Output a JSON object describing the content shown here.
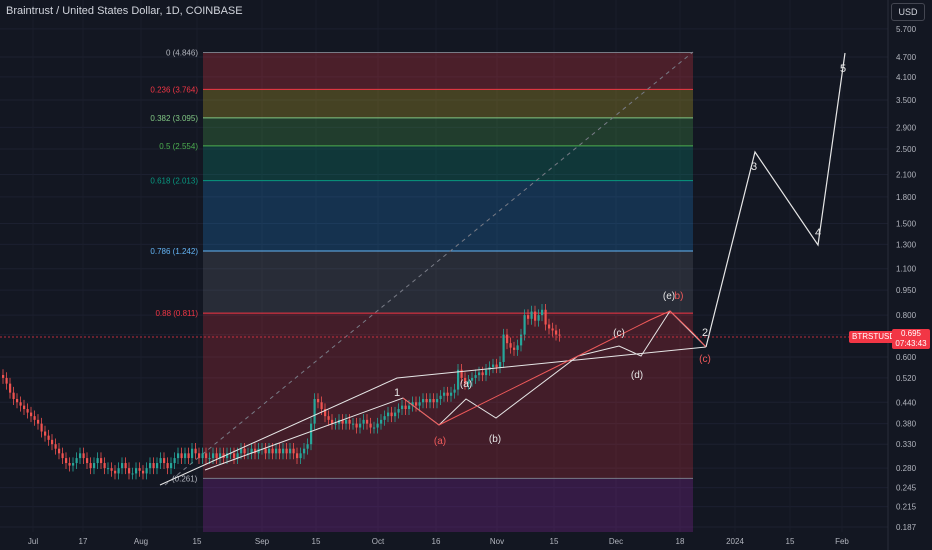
{
  "header": {
    "title": "Braintrust / United States Dollar, 1D, COINBASE",
    "currency": "USD"
  },
  "symbol_tag": "BTRSTUSD",
  "last_price": {
    "price": "0.695",
    "countdown": "07:43:43"
  },
  "colors": {
    "background": "#131722",
    "up": "#26a69a",
    "down": "#ef5350",
    "wave_line": "#e6e6e6",
    "wave_red": "#f05a5a"
  },
  "chart_data": {
    "type": "candlestick",
    "title": "Braintrust / United States Dollar, 1D, COINBASE",
    "y_scale": "log",
    "y_ticks": [
      "5.700",
      "4.700",
      "4.100",
      "3.500",
      "2.900",
      "2.500",
      "2.100",
      "1.800",
      "1.500",
      "1.300",
      "1.100",
      "0.950",
      "0.800",
      "0.700",
      "0.600",
      "0.520",
      "0.440",
      "0.380",
      "0.330",
      "0.280",
      "0.245",
      "0.215",
      "0.187"
    ],
    "x_ticks": [
      "Jul",
      "17",
      "Aug",
      "15",
      "Sep",
      "15",
      "Oct",
      "16",
      "Nov",
      "15",
      "Dec",
      "18",
      "2024",
      "15",
      "Feb"
    ],
    "fib_levels": [
      {
        "ratio": "0",
        "price": "4.846"
      },
      {
        "ratio": "0.236",
        "price": "3.764"
      },
      {
        "ratio": "0.382",
        "price": "3.095"
      },
      {
        "ratio": "0.5",
        "price": "2.554"
      },
      {
        "ratio": "0.618",
        "price": "2.013"
      },
      {
        "ratio": "0.786",
        "price": "1.242"
      },
      {
        "ratio": "0.88",
        "price": "0.811"
      },
      {
        "ratio": "1",
        "price": "0.261"
      }
    ],
    "fib_labels": [
      "0 (4.846)",
      "0.236 (3.764)",
      "0.382 (3.095)",
      "0.5 (2.554)",
      "0.618 (2.013)",
      "0.786 (1.242)",
      "0.88 (0.811)",
      "(0.261)"
    ],
    "candle_closes": [
      0.52,
      0.5,
      0.47,
      0.45,
      0.44,
      0.43,
      0.42,
      0.41,
      0.4,
      0.39,
      0.38,
      0.36,
      0.35,
      0.34,
      0.33,
      0.32,
      0.31,
      0.3,
      0.29,
      0.285,
      0.29,
      0.3,
      0.31,
      0.3,
      0.29,
      0.28,
      0.29,
      0.3,
      0.29,
      0.28,
      0.28,
      0.275,
      0.27,
      0.28,
      0.29,
      0.28,
      0.27,
      0.27,
      0.28,
      0.275,
      0.27,
      0.28,
      0.29,
      0.28,
      0.29,
      0.3,
      0.29,
      0.28,
      0.29,
      0.3,
      0.31,
      0.3,
      0.31,
      0.3,
      0.32,
      0.31,
      0.3,
      0.31,
      0.3,
      0.3,
      0.31,
      0.3,
      0.31,
      0.3,
      0.31,
      0.31,
      0.3,
      0.31,
      0.32,
      0.31,
      0.31,
      0.32,
      0.31,
      0.32,
      0.32,
      0.31,
      0.32,
      0.31,
      0.32,
      0.31,
      0.32,
      0.31,
      0.32,
      0.31,
      0.3,
      0.31,
      0.32,
      0.33,
      0.38,
      0.45,
      0.44,
      0.42,
      0.4,
      0.39,
      0.38,
      0.38,
      0.39,
      0.38,
      0.39,
      0.38,
      0.38,
      0.37,
      0.38,
      0.39,
      0.38,
      0.37,
      0.37,
      0.38,
      0.39,
      0.4,
      0.41,
      0.4,
      0.41,
      0.42,
      0.43,
      0.42,
      0.43,
      0.44,
      0.43,
      0.44,
      0.45,
      0.44,
      0.45,
      0.44,
      0.45,
      0.46,
      0.47,
      0.46,
      0.47,
      0.48,
      0.55,
      0.52,
      0.5,
      0.51,
      0.52,
      0.53,
      0.54,
      0.53,
      0.55,
      0.56,
      0.57,
      0.56,
      0.58,
      0.7,
      0.66,
      0.64,
      0.63,
      0.65,
      0.7,
      0.8,
      0.78,
      0.82,
      0.77,
      0.8,
      0.83,
      0.75,
      0.73,
      0.72,
      0.7,
      0.695
    ],
    "wave_path": [
      {
        "date": "Aug 8",
        "price": 0.25
      },
      {
        "date": "Oct 1",
        "price": 0.52
      },
      {
        "date": "Dec 25",
        "price": 0.635
      }
    ],
    "wave_projection": [
      {
        "date": "Dec 25",
        "price": 0.635
      },
      {
        "date": "Jan 5",
        "price": 2.45
      },
      {
        "date": "Jan 20",
        "price": 1.28
      },
      {
        "date": "Jan 27",
        "price": 4.85
      }
    ],
    "wave_labels": [
      {
        "text": "1",
        "color": "light"
      },
      {
        "text": "(a)",
        "color": "light"
      },
      {
        "text": "(a)",
        "color": "red"
      },
      {
        "text": "(b)",
        "color": "light"
      },
      {
        "text": "(c)",
        "color": "light"
      },
      {
        "text": "(d)",
        "color": "light"
      },
      {
        "text": "(e)",
        "color": "light"
      },
      {
        "text": "b)",
        "color": "red"
      },
      {
        "text": "2",
        "color": "light"
      },
      {
        "text": "(c)",
        "color": "red"
      },
      {
        "text": "3",
        "color": "light"
      },
      {
        "text": "4",
        "color": "light"
      },
      {
        "text": "5",
        "color": "light"
      }
    ]
  }
}
